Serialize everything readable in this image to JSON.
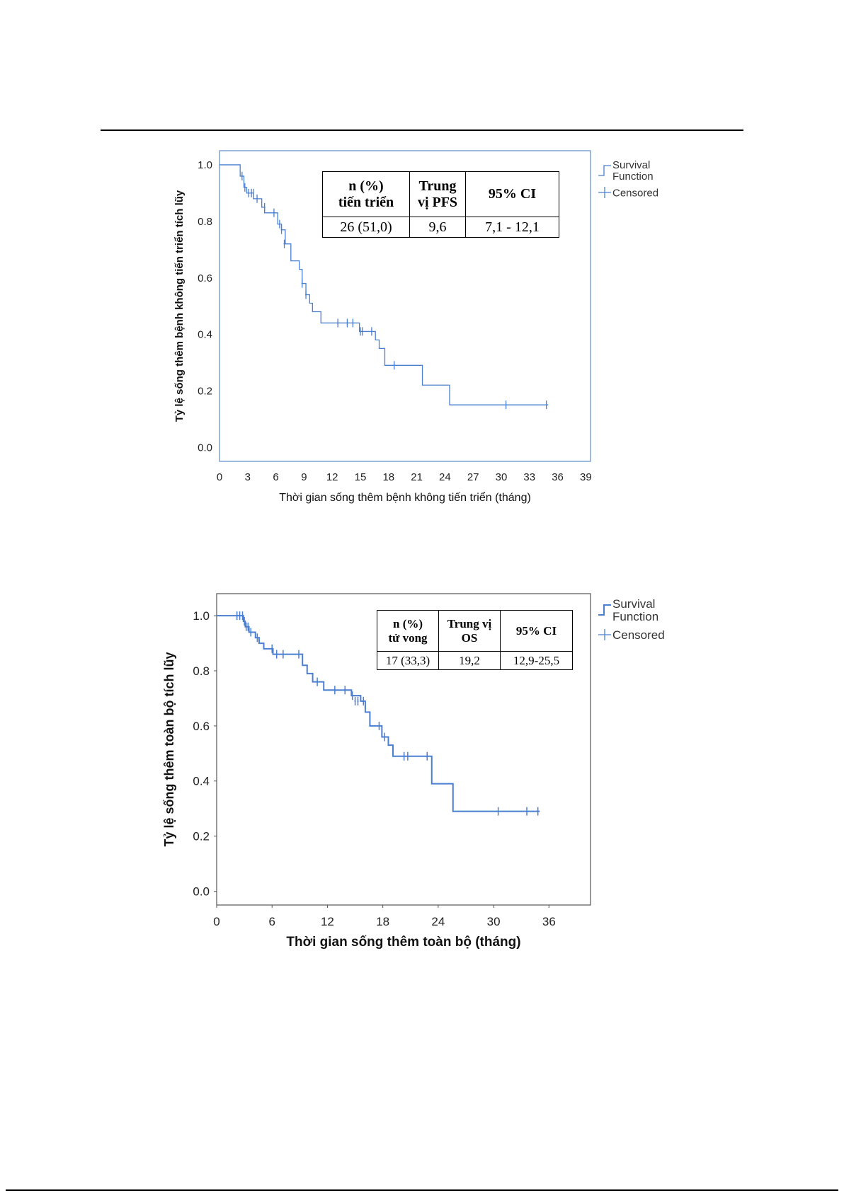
{
  "chart_data": [
    {
      "type": "line",
      "ylabel": "Tỷ lệ sống thêm bệnh không tiến triển tích lũy",
      "xlabel": "Thời gian sống thêm bệnh không tiến triển (tháng)",
      "xticks": [
        "0",
        "3",
        "6",
        "9",
        "12",
        "15",
        "18",
        "21",
        "24",
        "27",
        "30",
        "33",
        "36",
        "39"
      ],
      "yticks": [
        "0.0",
        "0.2",
        "0.4",
        "0.6",
        "0.8",
        "1.0"
      ],
      "xlim": [
        0,
        39.5
      ],
      "ylim": [
        -0.05,
        1.05
      ],
      "legend": {
        "position": "right",
        "function": "Survival\nFunction",
        "censored": "Censored"
      },
      "series": [
        {
          "steps": [
            [
              0,
              1.0
            ],
            [
              2.2,
              0.96
            ],
            [
              2.6,
              0.92
            ],
            [
              2.9,
              0.9
            ],
            [
              3.6,
              0.88
            ],
            [
              4.5,
              0.85
            ],
            [
              4.8,
              0.83
            ],
            [
              6.2,
              0.79
            ],
            [
              6.6,
              0.77
            ],
            [
              7.0,
              0.72
            ],
            [
              7.6,
              0.66
            ],
            [
              8.5,
              0.63
            ],
            [
              8.8,
              0.58
            ],
            [
              9.2,
              0.54
            ],
            [
              9.6,
              0.51
            ],
            [
              9.9,
              0.48
            ],
            [
              10.8,
              0.44
            ],
            [
              14.9,
              0.41
            ],
            [
              16.6,
              0.38
            ],
            [
              17.0,
              0.35
            ],
            [
              17.6,
              0.29
            ],
            [
              21.6,
              0.22
            ],
            [
              24.5,
              0.15
            ],
            [
              35.0,
              0.15
            ]
          ],
          "censored": [
            [
              2.4,
              0.96
            ],
            [
              2.7,
              0.92
            ],
            [
              3.1,
              0.9
            ],
            [
              3.4,
              0.9
            ],
            [
              3.6,
              0.9
            ],
            [
              4.0,
              0.88
            ],
            [
              4.8,
              0.85
            ],
            [
              5.8,
              0.83
            ],
            [
              6.4,
              0.79
            ],
            [
              6.6,
              0.77
            ],
            [
              6.9,
              0.72
            ],
            [
              8.8,
              0.58
            ],
            [
              9.2,
              0.54
            ],
            [
              12.6,
              0.44
            ],
            [
              13.6,
              0.44
            ],
            [
              14.2,
              0.44
            ],
            [
              15.0,
              0.41
            ],
            [
              15.2,
              0.41
            ],
            [
              16.2,
              0.41
            ],
            [
              18.6,
              0.29
            ],
            [
              30.5,
              0.15
            ],
            [
              34.8,
              0.15
            ]
          ]
        }
      ],
      "table": {
        "headers": [
          "n (%)\ntiến triển",
          "Trung\nvị PFS",
          "95% CI"
        ],
        "row": [
          "26 (51,0)",
          "9,6",
          "7,1 - 12,1"
        ]
      }
    },
    {
      "type": "line",
      "ylabel": "Tỷ lệ sống thêm toàn bộ tích lũy",
      "xlabel": "Thời gian sống thêm toàn bộ (tháng)",
      "xticks": [
        "0",
        "6",
        "12",
        "18",
        "24",
        "30",
        "36"
      ],
      "yticks": [
        "0.0",
        "0.2",
        "0.4",
        "0.6",
        "0.8",
        "1.0"
      ],
      "xlim": [
        0,
        40.5
      ],
      "ylim": [
        -0.05,
        1.08
      ],
      "legend": {
        "position": "right",
        "function": "Survival\nFunction",
        "censored": "Censored"
      },
      "series": [
        {
          "steps": [
            [
              0,
              1.0
            ],
            [
              2.9,
              0.98
            ],
            [
              3.1,
              0.96
            ],
            [
              3.5,
              0.94
            ],
            [
              4.2,
              0.92
            ],
            [
              4.6,
              0.9
            ],
            [
              5.1,
              0.88
            ],
            [
              6.1,
              0.86
            ],
            [
              9.3,
              0.82
            ],
            [
              9.8,
              0.79
            ],
            [
              10.4,
              0.76
            ],
            [
              11.6,
              0.73
            ],
            [
              14.6,
              0.71
            ],
            [
              15.6,
              0.69
            ],
            [
              16.1,
              0.65
            ],
            [
              16.6,
              0.6
            ],
            [
              17.9,
              0.56
            ],
            [
              18.6,
              0.53
            ],
            [
              19.1,
              0.49
            ],
            [
              23.3,
              0.39
            ],
            [
              25.6,
              0.29
            ],
            [
              35.0,
              0.29
            ]
          ],
          "censored": [
            [
              2.2,
              1.0
            ],
            [
              2.5,
              1.0
            ],
            [
              2.8,
              1.0
            ],
            [
              3.0,
              0.98
            ],
            [
              3.2,
              0.96
            ],
            [
              3.4,
              0.96
            ],
            [
              3.7,
              0.94
            ],
            [
              4.4,
              0.92
            ],
            [
              6.0,
              0.88
            ],
            [
              6.5,
              0.86
            ],
            [
              7.2,
              0.86
            ],
            [
              8.9,
              0.86
            ],
            [
              10.9,
              0.76
            ],
            [
              12.8,
              0.73
            ],
            [
              13.9,
              0.73
            ],
            [
              14.7,
              0.71
            ],
            [
              15.0,
              0.69
            ],
            [
              15.3,
              0.69
            ],
            [
              15.9,
              0.69
            ],
            [
              17.6,
              0.6
            ],
            [
              18.2,
              0.56
            ],
            [
              20.3,
              0.49
            ],
            [
              20.7,
              0.49
            ],
            [
              22.8,
              0.49
            ],
            [
              30.5,
              0.29
            ],
            [
              33.6,
              0.29
            ],
            [
              34.8,
              0.29
            ]
          ]
        }
      ],
      "table": {
        "headers": [
          "n (%)\ntử vong",
          "Trung vị\nOS",
          "95% CI"
        ],
        "row": [
          "17 (33,3)",
          "19,2",
          "12,9-25,5"
        ]
      }
    }
  ],
  "colors": {
    "curve": "#4a7fd1",
    "frame1": "#7fa2d6",
    "frame2": "#555555"
  }
}
